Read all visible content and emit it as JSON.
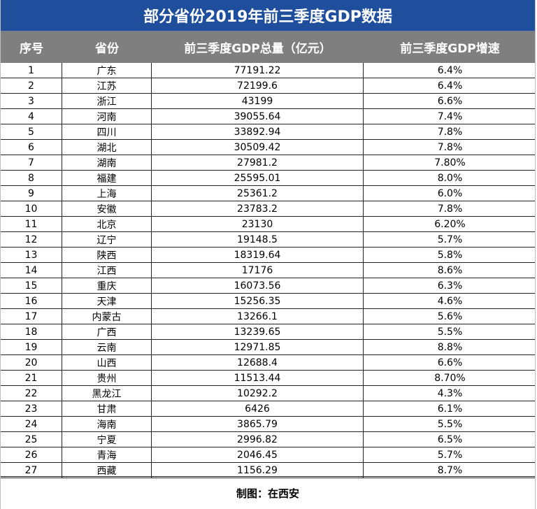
{
  "title": "部分省份2019年前三季度GDP数据",
  "headers": {
    "index": "序号",
    "province": "省份",
    "gdp": "前三季度GDP总量（亿元）",
    "growth": "前三季度GDP增速"
  },
  "rows": [
    {
      "index": "1",
      "province": "广东",
      "gdp": "77191.22",
      "growth": "6.4%"
    },
    {
      "index": "2",
      "province": "江苏",
      "gdp": "72199.6",
      "growth": "6.4%"
    },
    {
      "index": "3",
      "province": "浙江",
      "gdp": "43199",
      "growth": "6.6%"
    },
    {
      "index": "4",
      "province": "河南",
      "gdp": "39055.64",
      "growth": "7.4%"
    },
    {
      "index": "5",
      "province": "四川",
      "gdp": "33892.94",
      "growth": "7.8%"
    },
    {
      "index": "6",
      "province": "湖北",
      "gdp": "30509.42",
      "growth": "7.8%"
    },
    {
      "index": "7",
      "province": "湖南",
      "gdp": "27981.2",
      "growth": "7.80%"
    },
    {
      "index": "8",
      "province": "福建",
      "gdp": "25595.01",
      "growth": "8.0%"
    },
    {
      "index": "9",
      "province": "上海",
      "gdp": "25361.2",
      "growth": "6.0%"
    },
    {
      "index": "10",
      "province": "安徽",
      "gdp": "23783.2",
      "growth": "7.8%"
    },
    {
      "index": "11",
      "province": "北京",
      "gdp": "23130",
      "growth": "6.20%"
    },
    {
      "index": "12",
      "province": "辽宁",
      "gdp": "19148.5",
      "growth": "5.7%"
    },
    {
      "index": "13",
      "province": "陕西",
      "gdp": "18319.64",
      "growth": "5.8%"
    },
    {
      "index": "14",
      "province": "江西",
      "gdp": "17176",
      "growth": "8.6%"
    },
    {
      "index": "15",
      "province": "重庆",
      "gdp": "16073.56",
      "growth": "6.3%"
    },
    {
      "index": "16",
      "province": "天津",
      "gdp": "15256.35",
      "growth": "4.6%"
    },
    {
      "index": "17",
      "province": "内蒙古",
      "gdp": "13266.1",
      "growth": "5.6%"
    },
    {
      "index": "18",
      "province": "广西",
      "gdp": "13239.65",
      "growth": "5.5%"
    },
    {
      "index": "19",
      "province": "云南",
      "gdp": "12971.85",
      "growth": "8.8%"
    },
    {
      "index": "20",
      "province": "山西",
      "gdp": "12688.4",
      "growth": "6.6%"
    },
    {
      "index": "21",
      "province": "贵州",
      "gdp": "11513.44",
      "growth": "8.70%"
    },
    {
      "index": "22",
      "province": "黑龙江",
      "gdp": "10292.2",
      "growth": "4.3%"
    },
    {
      "index": "23",
      "province": "甘肃",
      "gdp": "6426",
      "growth": "6.1%"
    },
    {
      "index": "24",
      "province": "海南",
      "gdp": "3865.79",
      "growth": "5.5%"
    },
    {
      "index": "25",
      "province": "宁夏",
      "gdp": "2996.82",
      "growth": "6.5%"
    },
    {
      "index": "26",
      "province": "青海",
      "gdp": "2046.45",
      "growth": "5.7%"
    },
    {
      "index": "27",
      "province": "西藏",
      "gdp": "1156.29",
      "growth": "8.7%"
    }
  ],
  "footer": "制图：在西安",
  "colors": {
    "title_bg": "#1f4e9c",
    "header_bg": "#7f7f7f"
  }
}
